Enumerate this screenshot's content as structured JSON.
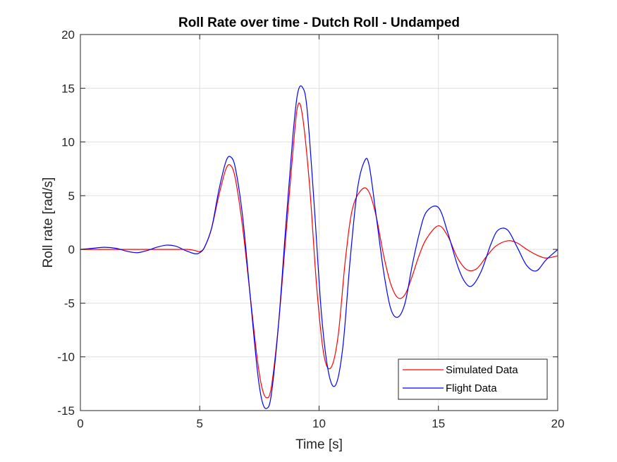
{
  "chart_data": {
    "type": "line",
    "title": "Roll Rate over time - Dutch Roll - Undamped",
    "xlabel": "Time [s]",
    "ylabel": "Roll rate [rad/s]",
    "xlim": [
      0,
      20
    ],
    "ylim": [
      -15,
      20
    ],
    "xticks": [
      0,
      5,
      10,
      15,
      20
    ],
    "yticks": [
      -15,
      -10,
      -5,
      0,
      5,
      10,
      15,
      20
    ],
    "xtick_labels": [
      "0",
      "5",
      "10",
      "15",
      "20"
    ],
    "ytick_labels": [
      "-15",
      "-10",
      "-5",
      "0",
      "5",
      "10",
      "15",
      "20"
    ],
    "grid": true,
    "legend": "bottom-right",
    "series": [
      {
        "name": "Simulated Data",
        "color": "#ff0000",
        "x": [
          0,
          0.5,
          1.0,
          1.5,
          2.0,
          2.5,
          3.0,
          3.5,
          4.0,
          4.5,
          4.8,
          5.0,
          5.2,
          5.5,
          5.8,
          6.1,
          6.3,
          6.5,
          6.8,
          7.1,
          7.4,
          7.6,
          7.8,
          8.0,
          8.3,
          8.6,
          8.9,
          9.1,
          9.3,
          9.6,
          9.9,
          10.2,
          10.5,
          10.8,
          11.1,
          11.4,
          11.8,
          12.1,
          12.4,
          12.7,
          13.0,
          13.3,
          13.6,
          13.9,
          14.2,
          14.5,
          15.0,
          15.4,
          15.8,
          16.2,
          16.6,
          17.0,
          17.4,
          17.9,
          18.3,
          18.7,
          19.1,
          19.5,
          20.0
        ],
        "y": [
          0,
          0,
          0,
          0,
          0,
          0,
          0,
          0,
          0,
          0,
          -0.1,
          -0.2,
          0.2,
          2.0,
          5.0,
          7.5,
          7.8,
          6.5,
          2.0,
          -4.0,
          -10.0,
          -12.8,
          -13.8,
          -12.8,
          -7.0,
          1.0,
          9.0,
          13.3,
          12.5,
          6.0,
          -3.5,
          -9.8,
          -11.0,
          -8.0,
          -1.0,
          3.8,
          5.6,
          5.3,
          3.0,
          -0.5,
          -3.2,
          -4.5,
          -4.2,
          -2.5,
          -0.5,
          1.0,
          2.2,
          1.2,
          -0.8,
          -1.9,
          -1.8,
          -0.7,
          0.3,
          0.8,
          0.6,
          0,
          -0.5,
          -0.8,
          -0.6
        ]
      },
      {
        "name": "Flight Data",
        "color": "#0000ff",
        "x": [
          0,
          0.5,
          1.0,
          1.5,
          2.0,
          2.4,
          2.8,
          3.2,
          3.6,
          4.0,
          4.4,
          4.8,
          5.0,
          5.2,
          5.5,
          5.8,
          6.1,
          6.3,
          6.5,
          6.8,
          7.1,
          7.4,
          7.6,
          7.8,
          8.0,
          8.3,
          8.6,
          8.9,
          9.1,
          9.3,
          9.5,
          9.8,
          10.1,
          10.4,
          10.7,
          11.0,
          11.3,
          11.6,
          11.9,
          12.1,
          12.4,
          12.7,
          13.0,
          13.3,
          13.6,
          13.9,
          14.2,
          14.5,
          15.0,
          15.4,
          15.8,
          16.1,
          16.4,
          16.8,
          17.2,
          17.5,
          17.9,
          18.3,
          18.7,
          19.1,
          19.5,
          20.0
        ],
        "y": [
          0,
          0.1,
          0.2,
          0.1,
          -0.2,
          -0.3,
          -0.1,
          0.2,
          0.4,
          0.3,
          -0.1,
          -0.4,
          -0.3,
          0.2,
          2.0,
          5.5,
          8.2,
          8.6,
          7.5,
          3.0,
          -4.0,
          -11.0,
          -14.0,
          -14.8,
          -13.5,
          -7.0,
          2.0,
          10.5,
          14.5,
          15.1,
          13.0,
          4.0,
          -6.0,
          -11.5,
          -12.6,
          -9.0,
          -1.0,
          5.5,
          8.2,
          7.8,
          3.0,
          -2.0,
          -5.5,
          -6.3,
          -5.0,
          -1.5,
          1.5,
          3.5,
          3.9,
          1.5,
          -1.5,
          -3.0,
          -3.4,
          -2.0,
          0.5,
          1.8,
          1.8,
          0.2,
          -1.5,
          -2.0,
          -1.0,
          0
        ]
      }
    ]
  }
}
